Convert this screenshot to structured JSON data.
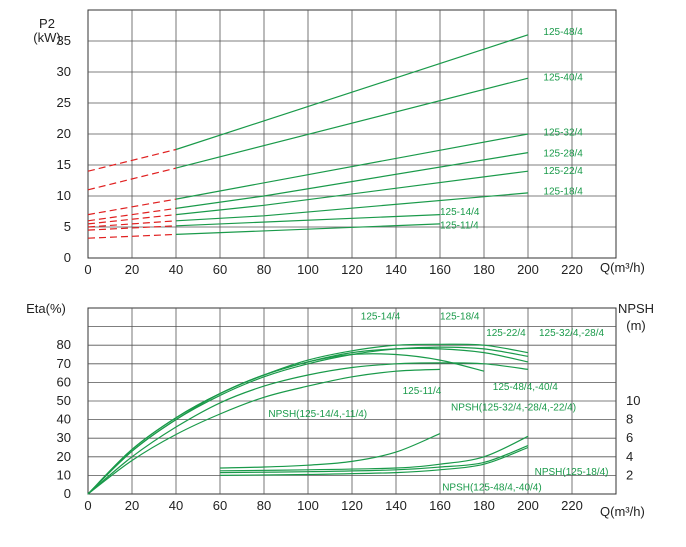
{
  "chart_data": [
    {
      "type": "line",
      "ylabel": "P2",
      "yunit": "(kW)",
      "xlabel": "Q(m³/h)",
      "xlim": [
        0,
        240
      ],
      "ylim": [
        0,
        40
      ],
      "xticks": [
        "0",
        "20",
        "40",
        "60",
        "80",
        "100",
        "120",
        "140",
        "160",
        "180",
        "200",
        "220"
      ],
      "yticks": [
        "0",
        "5",
        "10",
        "15",
        "20",
        "25",
        "30",
        "35"
      ],
      "grid": true,
      "series_color": "#1a9a4a",
      "extension_color": "#e02020",
      "series": [
        {
          "name": "125-48/4",
          "x": [
            0,
            40,
            200
          ],
          "y": [
            14,
            17.5,
            36
          ],
          "label_pos": [
            207,
            36.6
          ]
        },
        {
          "name": "125-40/4",
          "x": [
            0,
            40,
            200
          ],
          "y": [
            11,
            14.5,
            29
          ],
          "label_pos": [
            207,
            29.3
          ]
        },
        {
          "name": "125-32/4",
          "x": [
            0,
            40,
            200
          ],
          "y": [
            7,
            9.5,
            20
          ],
          "label_pos": [
            207,
            20.4
          ]
        },
        {
          "name": "125-28/4",
          "x": [
            0,
            40,
            80,
            200
          ],
          "y": [
            6,
            8,
            10,
            17
          ],
          "label_pos": [
            207,
            17
          ]
        },
        {
          "name": "125-22/4",
          "x": [
            0,
            40,
            80,
            200
          ],
          "y": [
            5.5,
            7,
            8.5,
            14
          ],
          "label_pos": [
            207,
            14.2
          ]
        },
        {
          "name": "125-18/4",
          "x": [
            0,
            40,
            80,
            200
          ],
          "y": [
            5,
            6,
            6.8,
            10.5
          ],
          "label_pos": [
            207,
            10.9
          ]
        },
        {
          "name": "125-14/4",
          "x": [
            0,
            40,
            160
          ],
          "y": [
            4.5,
            5.2,
            7
          ],
          "label_pos": [
            160,
            7.6
          ]
        },
        {
          "name": "125-11/4",
          "x": [
            0,
            40,
            160
          ],
          "y": [
            3.2,
            3.8,
            5.5
          ],
          "label_pos": [
            160,
            5.4
          ]
        }
      ]
    },
    {
      "type": "line",
      "ylabel": "Eta(%)",
      "y2label": "NPSH",
      "y2unit": "(m)",
      "xlabel": "Q(m³/h)",
      "xlim": [
        0,
        240
      ],
      "ylim": [
        0,
        100
      ],
      "y2lim": [
        0,
        20
      ],
      "xticks": [
        "0",
        "20",
        "40",
        "60",
        "80",
        "100",
        "120",
        "140",
        "160",
        "180",
        "200",
        "220"
      ],
      "yticks": [
        "0",
        "10",
        "20",
        "30",
        "40",
        "50",
        "60",
        "70",
        "80"
      ],
      "y2ticks": [
        "2",
        "4",
        "6",
        "8",
        "10"
      ],
      "grid": true,
      "series_color": "#1a9a4a",
      "efficiency_series": [
        {
          "name": "125-18/4",
          "x": [
            0,
            20,
            40,
            60,
            80,
            100,
            120,
            140,
            160,
            180,
            200
          ],
          "y": [
            0,
            24,
            41,
            54,
            64,
            72,
            77,
            80,
            80.5,
            80,
            76
          ]
        },
        {
          "name": "125-22/4",
          "x": [
            0,
            20,
            40,
            60,
            80,
            100,
            120,
            140,
            160,
            180,
            200
          ],
          "y": [
            0,
            24,
            41,
            54,
            64,
            71,
            76,
            78,
            78,
            76,
            71
          ]
        },
        {
          "name": "125-32/4,-28/4",
          "x": [
            0,
            20,
            40,
            60,
            80,
            100,
            120,
            140,
            160,
            180,
            200
          ],
          "y": [
            0,
            23,
            40,
            53,
            63,
            70,
            75,
            78,
            79,
            78,
            74
          ]
        },
        {
          "name": "125-14/4",
          "x": [
            0,
            20,
            40,
            60,
            80,
            100,
            120,
            140,
            160,
            180
          ],
          "y": [
            0,
            23,
            40,
            54,
            64,
            71,
            75,
            75,
            72,
            66
          ]
        },
        {
          "name": "125-48/4,-40/4",
          "x": [
            0,
            20,
            40,
            60,
            80,
            100,
            120,
            140,
            160,
            180,
            200
          ],
          "y": [
            0,
            20,
            36,
            49,
            58,
            64,
            68,
            70,
            70.5,
            70,
            67
          ]
        },
        {
          "name": "125-11/4",
          "x": [
            0,
            20,
            40,
            60,
            80,
            100,
            120,
            140,
            160
          ],
          "y": [
            0,
            18,
            32,
            43,
            52,
            58,
            63,
            66,
            67
          ]
        }
      ],
      "npsh_series": [
        {
          "name": "NPSH(125-14/4,-11/4)",
          "x": [
            60,
            80,
            100,
            120,
            140,
            160
          ],
          "y": [
            2.8,
            2.9,
            3.1,
            3.5,
            4.5,
            6.5
          ]
        },
        {
          "name": "NPSH(125-32/4,-28/4,-22/4)",
          "x": [
            60,
            100,
            140,
            160,
            180,
            200
          ],
          "y": [
            2.5,
            2.6,
            2.8,
            3.2,
            4.0,
            6.2
          ]
        },
        {
          "name": "NPSH(125-18/4)",
          "x": [
            60,
            100,
            140,
            160,
            180,
            200
          ],
          "y": [
            2.3,
            2.4,
            2.6,
            2.9,
            3.4,
            5.2
          ]
        },
        {
          "name": "NPSH(125-48/4,-40/4)",
          "x": [
            60,
            100,
            140,
            160,
            180,
            200
          ],
          "y": [
            2.0,
            2.1,
            2.3,
            2.6,
            3.2,
            5.0
          ]
        }
      ],
      "labels": [
        {
          "text": "125-14/4",
          "pos": [
            124,
            96
          ]
        },
        {
          "text": "125-18/4",
          "pos": [
            160,
            96
          ]
        },
        {
          "text": "125-22/4",
          "pos": [
            181,
            87
          ]
        },
        {
          "text": "125-32/4,-28/4",
          "pos": [
            205,
            87
          ]
        },
        {
          "text": "125-11/4",
          "pos": [
            143,
            56
          ]
        },
        {
          "text": "125-48/4,-40/4",
          "pos": [
            184,
            58
          ]
        },
        {
          "text": "NPSH(125-14/4,-11/4)",
          "pos": [
            82,
            8.7
          ],
          "axis": "y2"
        },
        {
          "text": "NPSH(125-32/4,-28/4,-22/4)",
          "pos": [
            165,
            9.4
          ],
          "axis": "y2"
        },
        {
          "text": "NPSH(125-18/4)",
          "pos": [
            203,
            2.5
          ],
          "axis": "y2"
        },
        {
          "text": "NPSH(125-48/4,-40/4)",
          "pos": [
            161,
            0.8
          ],
          "axis": "y2"
        }
      ]
    }
  ]
}
